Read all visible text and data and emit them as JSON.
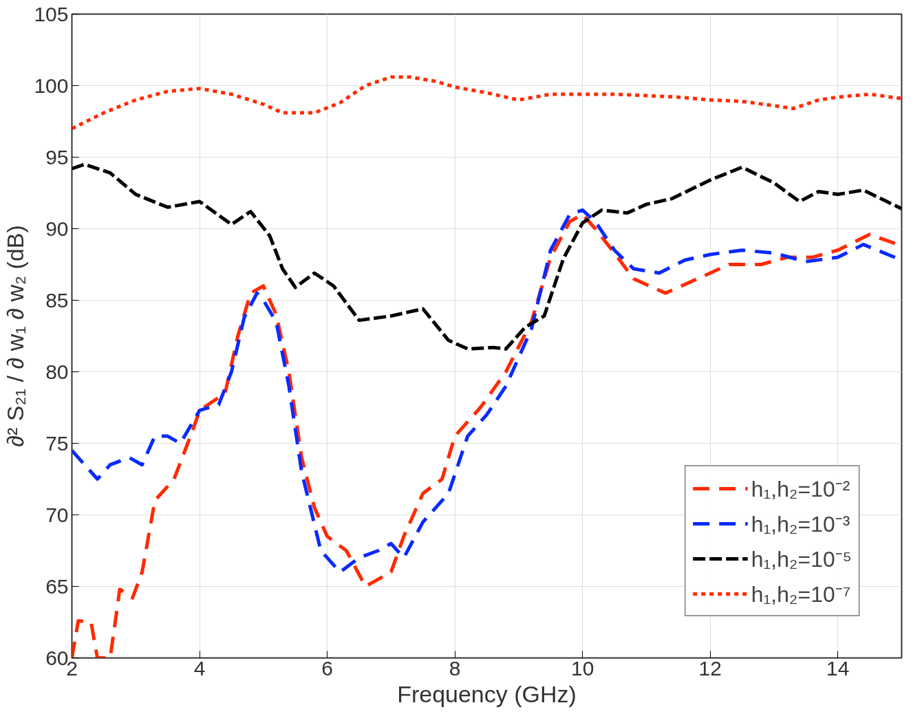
{
  "chart_data": {
    "type": "line",
    "xlabel": "Frequency (GHz)",
    "ylabel": "∂² S₂₁ / ∂ w₁ ∂ w₂ (dB)",
    "xlim": [
      2,
      15
    ],
    "ylim": [
      60,
      105
    ],
    "xticks": [
      2,
      4,
      6,
      8,
      10,
      12,
      14
    ],
    "yticks": [
      60,
      65,
      70,
      75,
      80,
      85,
      90,
      95,
      100,
      105
    ],
    "grid": true,
    "legend": "bottom right",
    "series": [
      {
        "name": "h₁,h₂=10⁻²",
        "color": "#ff2a00",
        "line_style": "dashed",
        "x": [
          2.0,
          2.1,
          2.3,
          2.4,
          2.6,
          2.75,
          2.95,
          3.1,
          3.3,
          3.6,
          3.9,
          4.0,
          4.4,
          4.6,
          4.8,
          5.0,
          5.2,
          5.4,
          5.6,
          5.8,
          6.0,
          6.3,
          6.6,
          6.8,
          7.0,
          7.2,
          7.5,
          7.8,
          8.0,
          8.4,
          8.8,
          9.2,
          9.5,
          9.8,
          10.0,
          10.2,
          10.5,
          10.8,
          11.3,
          11.8,
          12.3,
          12.8,
          13.2,
          13.6,
          14.0,
          14.5,
          15.0
        ],
        "values": [
          60,
          62.6,
          62.5,
          60,
          60,
          64.8,
          64.2,
          66,
          71,
          72.5,
          76,
          77.3,
          78.5,
          82.5,
          85.5,
          86,
          84,
          80,
          74,
          70.5,
          68.5,
          67.5,
          65,
          65.5,
          66,
          68.5,
          71.5,
          72.5,
          75.5,
          77.5,
          80,
          83.5,
          88,
          90.5,
          91,
          90,
          88.3,
          86.5,
          85.5,
          86.5,
          87.5,
          87.5,
          88,
          88,
          88.5,
          89.6,
          88.8
        ]
      },
      {
        "name": "h₁,h₂=10⁻³",
        "color": "#0a2aff",
        "line_style": "dashed",
        "x": [
          2.0,
          2.2,
          2.4,
          2.6,
          2.9,
          3.1,
          3.3,
          3.5,
          3.7,
          4.0,
          4.3,
          4.5,
          4.7,
          4.9,
          5.0,
          5.2,
          5.4,
          5.6,
          5.9,
          6.2,
          6.5,
          6.8,
          7.0,
          7.2,
          7.5,
          7.9,
          8.2,
          8.5,
          8.8,
          9.2,
          9.5,
          9.8,
          10.0,
          10.2,
          10.5,
          10.8,
          11.2,
          11.6,
          12.0,
          12.5,
          13.0,
          13.5,
          14.0,
          14.4,
          15.0
        ],
        "values": [
          74.5,
          73.5,
          72.5,
          73.5,
          74,
          73.5,
          75.5,
          75.5,
          75,
          77.3,
          77.7,
          80,
          83.8,
          85.5,
          85,
          83.5,
          79,
          73,
          67.5,
          66,
          67,
          67.5,
          68,
          67,
          69.5,
          71.5,
          75.5,
          77,
          79,
          83,
          88.5,
          91,
          91.3,
          90.5,
          88.5,
          87.2,
          86.9,
          87.8,
          88.2,
          88.5,
          88.3,
          87.7,
          88,
          88.9,
          87.8
        ]
      },
      {
        "name": "h₁,h₂=10⁻⁵",
        "color": "#000000",
        "line_style": "dashed",
        "x": [
          2.0,
          2.2,
          2.6,
          3.0,
          3.5,
          4.0,
          4.5,
          4.8,
          5.1,
          5.3,
          5.5,
          5.8,
          6.1,
          6.5,
          7.0,
          7.5,
          7.9,
          8.2,
          8.6,
          8.8,
          9.1,
          9.4,
          9.7,
          10.0,
          10.3,
          10.7,
          11.0,
          11.4,
          12.0,
          12.5,
          13.0,
          13.4,
          13.7,
          14.0,
          14.4,
          15.0
        ],
        "values": [
          94.2,
          94.5,
          93.9,
          92.4,
          91.5,
          91.9,
          90.3,
          91.2,
          89.5,
          87.2,
          85.9,
          86.9,
          86.0,
          83.6,
          83.9,
          84.4,
          82.2,
          81.6,
          81.7,
          81.6,
          83.1,
          83.9,
          87.9,
          90.4,
          91.3,
          91.1,
          91.7,
          92.1,
          93.4,
          94.3,
          93.2,
          91.9,
          92.6,
          92.4,
          92.7,
          91.4
        ]
      },
      {
        "name": "h₁,h₂=10⁻⁷",
        "color": "#ff2a00",
        "line_style": "dotted",
        "x": [
          2.0,
          2.5,
          3.0,
          3.5,
          4.0,
          4.5,
          5.0,
          5.3,
          5.8,
          6.2,
          6.6,
          7.0,
          7.3,
          7.7,
          8.0,
          8.5,
          9.0,
          9.5,
          10.0,
          10.5,
          11.0,
          11.5,
          12.0,
          12.5,
          13.0,
          13.3,
          13.7,
          14.0,
          14.5,
          15.0
        ],
        "values": [
          97.0,
          98.1,
          99.0,
          99.6,
          99.8,
          99.4,
          98.7,
          98.1,
          98.1,
          98.8,
          100.0,
          100.6,
          100.6,
          100.3,
          99.9,
          99.5,
          99.0,
          99.4,
          99.4,
          99.4,
          99.3,
          99.2,
          99.0,
          98.9,
          98.6,
          98.4,
          99.0,
          99.2,
          99.4,
          99.1
        ]
      }
    ]
  }
}
